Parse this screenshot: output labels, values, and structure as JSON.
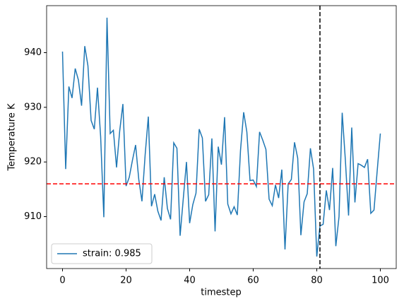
{
  "chart_data": {
    "type": "line",
    "xlabel": "timestep",
    "ylabel": "Temperature K",
    "x": [
      0,
      1,
      2,
      3,
      4,
      5,
      6,
      7,
      8,
      9,
      10,
      11,
      12,
      13,
      14,
      15,
      16,
      17,
      18,
      19,
      20,
      21,
      22,
      23,
      24,
      25,
      26,
      27,
      28,
      29,
      30,
      31,
      32,
      33,
      34,
      35,
      36,
      37,
      38,
      39,
      40,
      41,
      42,
      43,
      44,
      45,
      46,
      47,
      48,
      49,
      50,
      51,
      52,
      53,
      54,
      55,
      56,
      57,
      58,
      59,
      60,
      61,
      62,
      63,
      64,
      65,
      66,
      67,
      68,
      69,
      70,
      71,
      72,
      73,
      74,
      75,
      76,
      77,
      78,
      79,
      80,
      81,
      82,
      83,
      84,
      85,
      86,
      87,
      88,
      89,
      90,
      91,
      92,
      93,
      94,
      95,
      96,
      97,
      98,
      99,
      100
    ],
    "series": [
      {
        "name": "strain: 0.985",
        "color": "#1f77b4",
        "values": [
          940.2,
          918.7,
          933.8,
          931.7,
          937.1,
          935,
          930.3,
          941.2,
          937.6,
          927.6,
          926,
          933.6,
          924.6,
          909.9,
          946.4,
          925.2,
          925.8,
          919,
          925.7,
          930.6,
          915.6,
          917.2,
          920.3,
          923.1,
          916.8,
          912.8,
          921.3,
          928.3,
          911.9,
          914.1,
          911,
          909.3,
          917.2,
          911.5,
          909.5,
          923.5,
          922.5,
          906.5,
          913.3,
          920,
          908.8,
          912.2,
          914.3,
          926,
          924.4,
          912.8,
          914,
          924.3,
          907.3,
          922.8,
          919.5,
          928.2,
          912.3,
          910.5,
          911.8,
          910.3,
          922.1,
          929.1,
          925.5,
          916.6,
          916.7,
          915.5,
          925.5,
          924,
          922.3,
          913.2,
          912,
          915.8,
          913.4,
          918.6,
          904,
          916,
          916.8,
          923.6,
          920.7,
          906.6,
          912.7,
          914.2,
          922.5,
          918.7,
          902.7,
          908.3,
          908.6,
          914.8,
          911.2,
          918.9,
          904.6,
          910,
          929,
          920.3,
          910.2,
          926.3,
          912.6,
          919.7,
          919.4,
          919,
          920.5,
          910.6,
          911.2,
          918.3,
          925.2
        ]
      }
    ],
    "hline": {
      "value": 916,
      "color": "#ff0000"
    },
    "vline": {
      "value": 81,
      "color": "#000000"
    },
    "xlim": [
      -5,
      105
    ],
    "ylim": [
      900.5,
      948.6
    ],
    "xticks": [
      0,
      20,
      40,
      60,
      80,
      100
    ],
    "yticks": [
      910,
      920,
      930,
      940
    ],
    "legend": "lower left",
    "grid": false
  }
}
